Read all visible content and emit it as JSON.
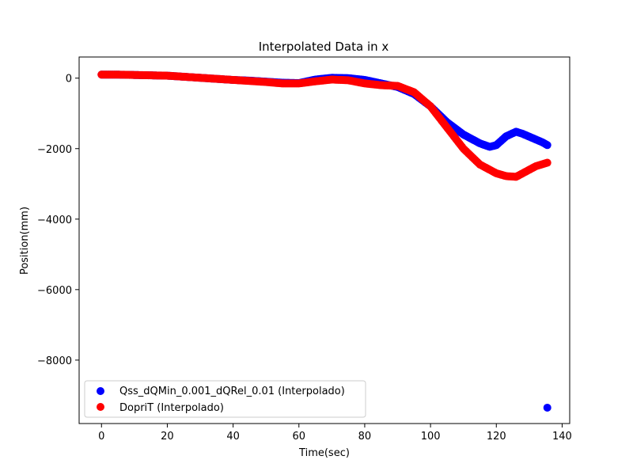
{
  "chart_data": {
    "type": "scatter",
    "title": "Interpolated Data in x",
    "xlabel": "Time(sec)",
    "ylabel": "Position(mm)",
    "xlim": [
      -6.8,
      142.3
    ],
    "ylim": [
      -9800,
      600
    ],
    "xticks": [
      0,
      20,
      40,
      60,
      80,
      100,
      120,
      140
    ],
    "yticks": [
      0,
      -2000,
      -4000,
      -6000,
      -8000
    ],
    "ytick_labels": [
      "0",
      "−2000",
      "−4000",
      "−6000",
      "−8000"
    ],
    "legend_position": "lower-left",
    "series": [
      {
        "name": "Qss_dQMin_0.001_dQRel_0.01 (Interpolado)",
        "color": "#0000ff",
        "points": [
          [
            0,
            100
          ],
          [
            5,
            100
          ],
          [
            10,
            90
          ],
          [
            15,
            80
          ],
          [
            20,
            70
          ],
          [
            25,
            40
          ],
          [
            30,
            10
          ],
          [
            35,
            -20
          ],
          [
            40,
            -50
          ],
          [
            45,
            -70
          ],
          [
            50,
            -100
          ],
          [
            55,
            -130
          ],
          [
            60,
            -140
          ],
          [
            65,
            -40
          ],
          [
            70,
            10
          ],
          [
            75,
            0
          ],
          [
            80,
            -50
          ],
          [
            85,
            -150
          ],
          [
            90,
            -250
          ],
          [
            95,
            -450
          ],
          [
            100,
            -800
          ],
          [
            105,
            -1250
          ],
          [
            110,
            -1600
          ],
          [
            115,
            -1850
          ],
          [
            118,
            -1950
          ],
          [
            120,
            -1900
          ],
          [
            123,
            -1650
          ],
          [
            126,
            -1520
          ],
          [
            128,
            -1580
          ],
          [
            131,
            -1700
          ],
          [
            134,
            -1820
          ],
          [
            135.5,
            -1900
          ],
          [
            135.5,
            -9350
          ]
        ]
      },
      {
        "name": "DopriT (Interpolado)",
        "color": "#ff0000",
        "points": [
          [
            0,
            100
          ],
          [
            5,
            100
          ],
          [
            10,
            90
          ],
          [
            15,
            80
          ],
          [
            20,
            70
          ],
          [
            25,
            40
          ],
          [
            30,
            10
          ],
          [
            35,
            -20
          ],
          [
            40,
            -50
          ],
          [
            45,
            -80
          ],
          [
            50,
            -110
          ],
          [
            55,
            -150
          ],
          [
            60,
            -150
          ],
          [
            65,
            -90
          ],
          [
            70,
            -40
          ],
          [
            75,
            -60
          ],
          [
            80,
            -150
          ],
          [
            85,
            -200
          ],
          [
            90,
            -220
          ],
          [
            95,
            -400
          ],
          [
            100,
            -800
          ],
          [
            105,
            -1400
          ],
          [
            110,
            -2000
          ],
          [
            115,
            -2450
          ],
          [
            120,
            -2700
          ],
          [
            123,
            -2780
          ],
          [
            126,
            -2800
          ],
          [
            129,
            -2650
          ],
          [
            132,
            -2500
          ],
          [
            135.5,
            -2400
          ]
        ]
      }
    ]
  }
}
